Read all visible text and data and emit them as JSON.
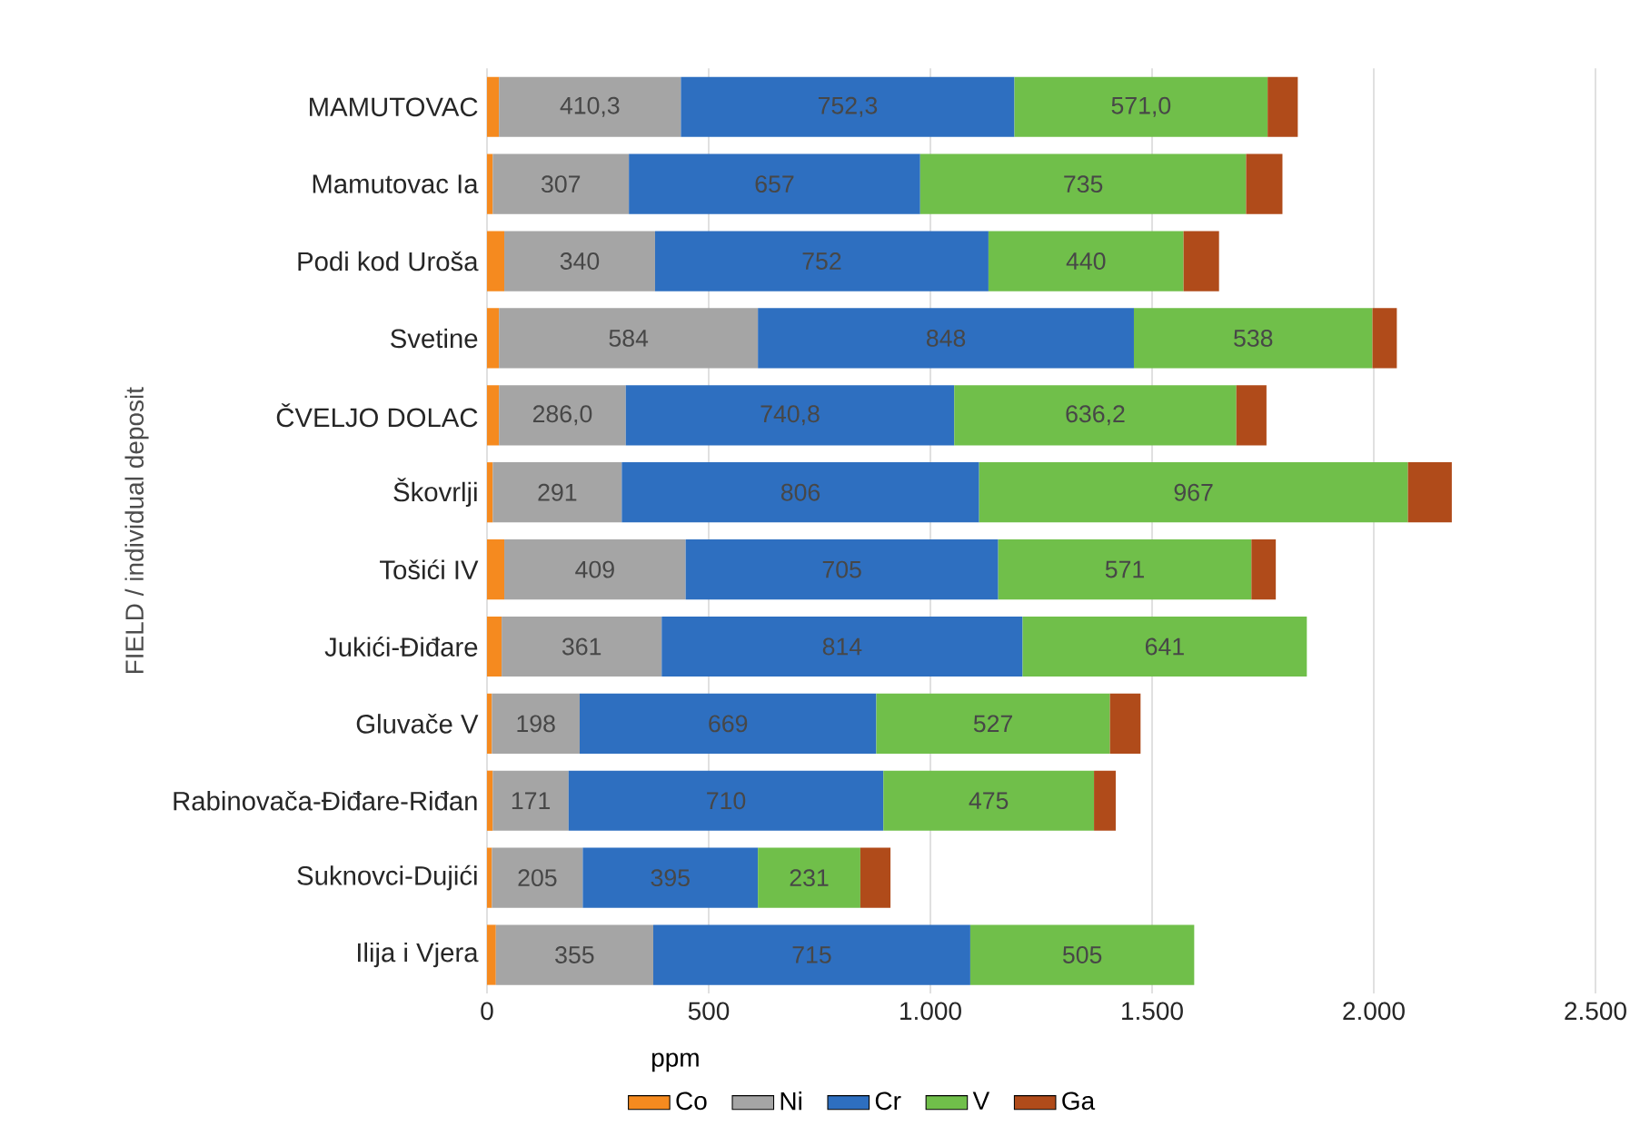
{
  "chart_data": {
    "type": "bar",
    "orientation": "horizontal",
    "stacked": true,
    "xlabel": "ppm",
    "ylabel": "FIELD / individual deposit",
    "categories": [
      "MAMUTOVAC",
      "Mamutovac Ia",
      "Podi kod Uroša",
      "Svetine",
      "ČVELJO DOLAC",
      "Škovrlji",
      "Tošići IV",
      "Jukići-Điđare",
      "Gluvače V",
      "Rabinovača-Điđare-Riđan",
      "Suknovci-Dujići",
      "Ilija i Vjera"
    ],
    "series": [
      {
        "name": "Co",
        "color": "#f58a1f",
        "values": [
          27,
          13,
          39,
          27,
          27,
          13,
          39,
          33,
          11,
          13,
          11,
          20
        ]
      },
      {
        "name": "Ni",
        "color": "#a5a5a5",
        "values": [
          410.3,
          307,
          340,
          584,
          286.0,
          291,
          409,
          361,
          198,
          171,
          205,
          355
        ],
        "value_labels": [
          "410,3",
          "307",
          "340",
          "584",
          "286,0",
          "291",
          "409",
          "361",
          "198",
          "171",
          "205",
          "355"
        ]
      },
      {
        "name": "Cr",
        "color": "#2e6fc0",
        "values": [
          752.3,
          657,
          752,
          848,
          740.8,
          806,
          705,
          814,
          669,
          710,
          395,
          715
        ],
        "value_labels": [
          "752,3",
          "657",
          "752",
          "848",
          "740,8",
          "806",
          "705",
          "814",
          "669",
          "710",
          "395",
          "715"
        ]
      },
      {
        "name": "V",
        "color": "#70bf4a",
        "values": [
          571.0,
          735,
          440,
          538,
          636.2,
          967,
          571,
          641,
          527,
          475,
          231,
          505
        ],
        "value_labels": [
          "571,0",
          "735",
          "440",
          "538",
          "636,2",
          "967",
          "571",
          "641",
          "527",
          "475",
          "231",
          "505"
        ]
      },
      {
        "name": "Ga",
        "color": "#b04b1a",
        "values": [
          68,
          82,
          80,
          55,
          68,
          99,
          55,
          null,
          69,
          49,
          68,
          null
        ]
      }
    ],
    "xlim": [
      0,
      2500
    ],
    "xticks": [
      0,
      500,
      {
        "value": 1000,
        "label": "1.000"
      },
      {
        "value": 1500,
        "label": "1.500"
      },
      {
        "value": 2000,
        "label": "2.000"
      },
      {
        "value": 2500,
        "label": "2.500"
      }
    ],
    "grid": "x",
    "legend": "bottom"
  }
}
